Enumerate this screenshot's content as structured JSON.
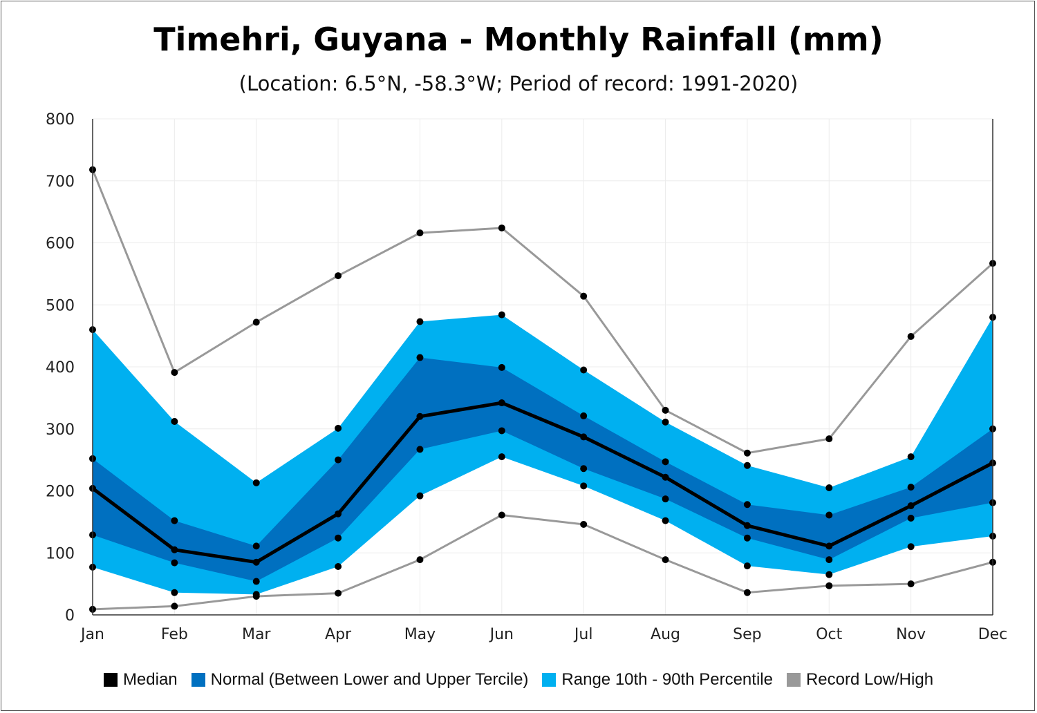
{
  "chart_data": {
    "type": "area",
    "title": "Timehri, Guyana - Monthly Rainfall (mm)",
    "subtitle": "(Location: 6.5°N, -58.3°W; Period of record: 1991-2020)",
    "categories": [
      "Jan",
      "Feb",
      "Mar",
      "Apr",
      "May",
      "Jun",
      "Jul",
      "Aug",
      "Sep",
      "Oct",
      "Nov",
      "Dec"
    ],
    "ylim": [
      0,
      800
    ],
    "yticks": [
      "0",
      "100",
      "200",
      "300",
      "400",
      "500",
      "600",
      "700",
      "800"
    ],
    "grid": true,
    "legend_position": "bottom",
    "series": [
      {
        "name": "Median",
        "color": "#000000",
        "values": [
          204,
          105,
          85,
          163,
          320,
          342,
          287,
          222,
          144,
          111,
          176,
          245
        ]
      },
      {
        "name": "Normal (Between Lower and Upper Tercile)",
        "color": "#0070c0",
        "lower": [
          129,
          84,
          54,
          124,
          267,
          297,
          236,
          187,
          124,
          89,
          156,
          181
        ],
        "upper": [
          252,
          152,
          111,
          250,
          415,
          399,
          321,
          247,
          178,
          161,
          206,
          300
        ]
      },
      {
        "name": "Range 10th - 90th Percentile",
        "color": "#00b0f0",
        "lower": [
          77,
          36,
          33,
          78,
          192,
          255,
          208,
          152,
          79,
          65,
          110,
          127
        ],
        "upper": [
          460,
          312,
          213,
          301,
          473,
          484,
          395,
          311,
          241,
          205,
          255,
          480
        ]
      },
      {
        "name": "Record Low/High",
        "color": "#999999",
        "lower": [
          9,
          14,
          30,
          35,
          89,
          161,
          146,
          89,
          36,
          47,
          50,
          85
        ],
        "upper": [
          718,
          391,
          472,
          547,
          616,
          624,
          514,
          330,
          261,
          284,
          449,
          567
        ]
      }
    ]
  }
}
